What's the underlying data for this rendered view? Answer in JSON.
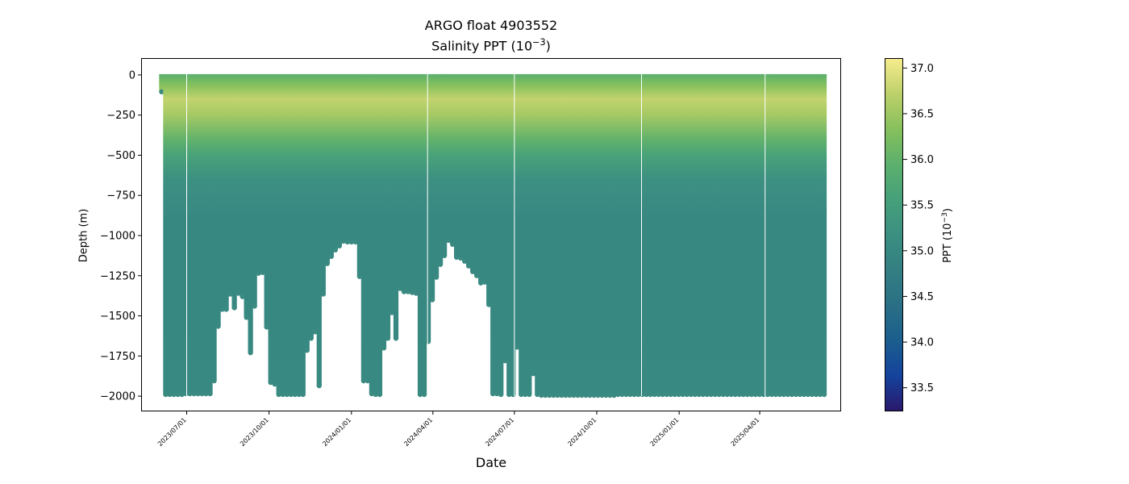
{
  "chart_data": {
    "type": "scatter",
    "title": "ARGO float 4903552",
    "subtitle_main": "Salinity PPT (10",
    "subtitle_exp": "−3",
    "subtitle_end": ")",
    "xlabel": "Date",
    "ylabel": "Depth (m)",
    "colorbar_label_main": "PPT (10",
    "colorbar_label_exp": "−3",
    "colorbar_label_end": ")",
    "colormap": "haline",
    "color_range": [
      33.25,
      37.1
    ],
    "colorbar_ticks": [
      "33.5",
      "34.0",
      "34.5",
      "35.0",
      "35.5",
      "36.0",
      "36.5",
      "37.0"
    ],
    "ylim": [
      -2090,
      100
    ],
    "y_ticks": [
      "0",
      "−250",
      "−500",
      "−750",
      "−1000",
      "−1250",
      "−1500",
      "−1750",
      "−2000"
    ],
    "xlim": [
      "2023-05-12",
      "2025-06-30"
    ],
    "x_ticks": [
      "2023/07/01",
      "2023/10/01",
      "2024/01/01",
      "2024/04/01",
      "2024/07/01",
      "2024/10/01",
      "2025/01/01",
      "2025/04/01"
    ],
    "profile_start": "2023-06-03",
    "profile_end": "2025-06-12",
    "data_gaps": [
      "2023-07-01",
      "2024-03-26",
      "2024-07-01",
      "2024-11-20",
      "2025-04-07"
    ],
    "profile_max_depth": [
      -105,
      -1990,
      -1990,
      -1990,
      -1990,
      -1990,
      -1985,
      -1985,
      -1985,
      -1985,
      -1985,
      -1985,
      -1985,
      -1905,
      -1565,
      -1460,
      -1460,
      -1365,
      -1450,
      -1360,
      -1380,
      -1510,
      -1730,
      -1440,
      -1235,
      -1230,
      -1570,
      -1915,
      -1925,
      -1990,
      -1990,
      -1990,
      -1990,
      -1990,
      -1990,
      -1990,
      -1715,
      -1640,
      -1600,
      -1935,
      -1365,
      -1175,
      -1130,
      -1090,
      -1065,
      -1035,
      -1040,
      -1040,
      -1040,
      -1255,
      -1905,
      -1905,
      -1985,
      -1990,
      -1990,
      -1700,
      -1640,
      -1480,
      -1640,
      -1330,
      -1350,
      -1350,
      -1355,
      -1360,
      -1990,
      -1990,
      -1660,
      -1400,
      -1260,
      -1180,
      -1125,
      -1030,
      -1055,
      -1135,
      -1140,
      -1160,
      -1190,
      -1225,
      -1250,
      -1295,
      -1290,
      -1430,
      -1985,
      -1985,
      -1990,
      -1780,
      -1990,
      -1990,
      -1695,
      -1990,
      -1990,
      -1990,
      -1860,
      -1990,
      -1995,
      -1995,
      -1995,
      -1995,
      -1995,
      -1995,
      -1995,
      -1995,
      -1995,
      -1995,
      -1995,
      -1995,
      -1995,
      -1995,
      -1995,
      -1995,
      -1995,
      -1995,
      -1995,
      -1990,
      -1990,
      -1990,
      -1990,
      -1990,
      -1990,
      -1990,
      -1990,
      -1990,
      -1990,
      -1990,
      -1990,
      -1990,
      -1990,
      -1990,
      -1990,
      -1990,
      -1990,
      -1990,
      -1990,
      -1990,
      -1990,
      -1990,
      -1990,
      -1990,
      -1990,
      -1990,
      -1990,
      -1990,
      -1990,
      -1990,
      -1990,
      -1990,
      -1990,
      -1990,
      -1990,
      -1990,
      -1990,
      -1990,
      -1990,
      -1990,
      -1990,
      -1990,
      -1990,
      -1990,
      -1990,
      -1990,
      -1990,
      -1990,
      -1990,
      -1990,
      -1990
    ],
    "profile_salinity": [
      {
        "depth": 0,
        "ppt": 35.95
      },
      {
        "depth": -60,
        "ppt": 36.3
      },
      {
        "depth": -150,
        "ppt": 36.75
      },
      {
        "depth": -250,
        "ppt": 36.55
      },
      {
        "depth": -400,
        "ppt": 36.0
      },
      {
        "depth": -500,
        "ppt": 35.6
      },
      {
        "depth": -650,
        "ppt": 35.2
      },
      {
        "depth": -900,
        "ppt": 35.0
      },
      {
        "depth": -1200,
        "ppt": 35.0
      },
      {
        "depth": -2000,
        "ppt": 35.02
      }
    ]
  }
}
